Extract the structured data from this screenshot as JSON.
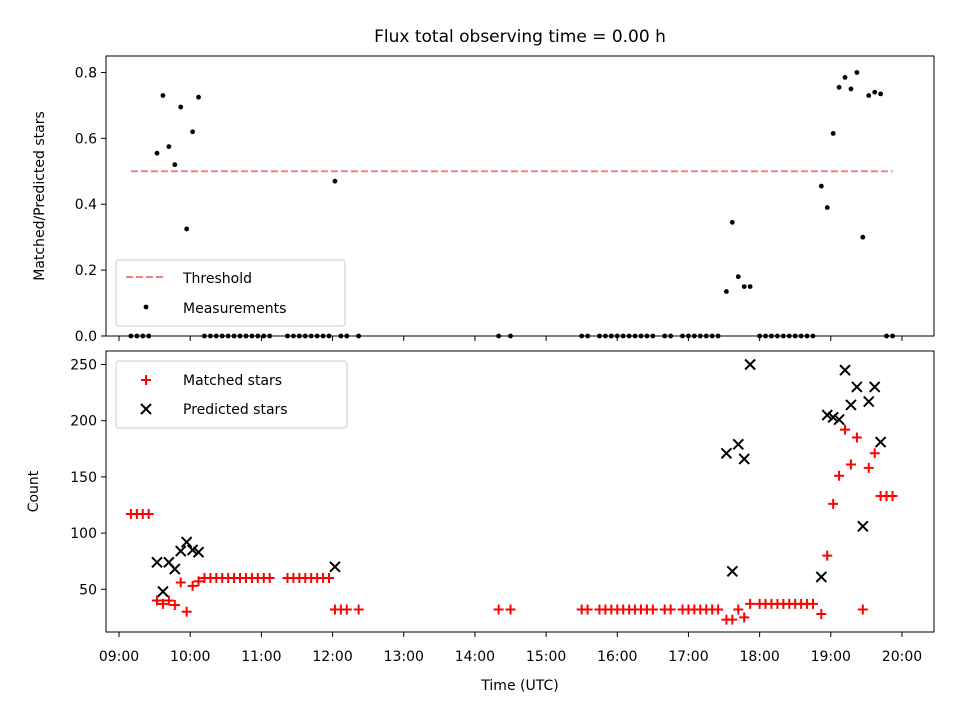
{
  "title": "Flux total observing time = 0.00 h",
  "chart_data": [
    {
      "type": "scatter",
      "ylabel": "Matched/Predicted stars",
      "xlim": [
        "08:49",
        "20:27"
      ],
      "ylim": [
        0,
        0.85
      ],
      "yticks": [
        "0.0",
        "0.2",
        "0.4",
        "0.6",
        "0.8"
      ],
      "legend": {
        "placement": "lower-left",
        "entries": [
          "Threshold",
          "Measurements"
        ]
      },
      "series": [
        {
          "name": "Threshold",
          "kind": "dashed-line",
          "color": "#f08080",
          "points": [
            [
              "09:10",
              0.5
            ],
            [
              "19:52",
              0.5
            ]
          ]
        },
        {
          "name": "Measurements",
          "kind": "dots",
          "color": "#000000",
          "points": [
            [
              "09:10",
              0
            ],
            [
              "09:15",
              0
            ],
            [
              "09:20",
              0
            ],
            [
              "09:25",
              0
            ],
            [
              "09:32",
              0.555
            ],
            [
              "09:37",
              0.73
            ],
            [
              "09:42",
              0.575
            ],
            [
              "09:47",
              0.52
            ],
            [
              "09:52",
              0.695
            ],
            [
              "09:57",
              0.325
            ],
            [
              "10:02",
              0.62
            ],
            [
              "10:07",
              0.725
            ],
            [
              "10:12",
              0
            ],
            [
              "10:17",
              0
            ],
            [
              "10:22",
              0
            ],
            [
              "10:27",
              0
            ],
            [
              "10:32",
              0
            ],
            [
              "10:37",
              0
            ],
            [
              "10:42",
              0
            ],
            [
              "10:47",
              0
            ],
            [
              "10:52",
              0
            ],
            [
              "10:57",
              0
            ],
            [
              "11:02",
              0
            ],
            [
              "11:07",
              0
            ],
            [
              "11:22",
              0
            ],
            [
              "11:27",
              0
            ],
            [
              "11:32",
              0
            ],
            [
              "11:37",
              0
            ],
            [
              "11:42",
              0
            ],
            [
              "11:47",
              0
            ],
            [
              "11:52",
              0
            ],
            [
              "11:57",
              0
            ],
            [
              "12:02",
              0.47
            ],
            [
              "12:07",
              0
            ],
            [
              "12:12",
              0
            ],
            [
              "12:22",
              0
            ],
            [
              "14:20",
              0
            ],
            [
              "14:30",
              0
            ],
            [
              "15:30",
              0
            ],
            [
              "15:35",
              0
            ],
            [
              "15:45",
              0
            ],
            [
              "15:50",
              0
            ],
            [
              "15:55",
              0
            ],
            [
              "16:00",
              0
            ],
            [
              "16:05",
              0
            ],
            [
              "16:10",
              0
            ],
            [
              "16:15",
              0
            ],
            [
              "16:20",
              0
            ],
            [
              "16:25",
              0
            ],
            [
              "16:30",
              0
            ],
            [
              "16:40",
              0
            ],
            [
              "16:45",
              0
            ],
            [
              "16:55",
              0
            ],
            [
              "17:00",
              0
            ],
            [
              "17:05",
              0
            ],
            [
              "17:10",
              0
            ],
            [
              "17:15",
              0
            ],
            [
              "17:20",
              0
            ],
            [
              "17:25",
              0
            ],
            [
              "17:32",
              0.135
            ],
            [
              "17:37",
              0.345
            ],
            [
              "17:42",
              0.18
            ],
            [
              "17:47",
              0.15
            ],
            [
              "17:52",
              0.15
            ],
            [
              "18:00",
              0
            ],
            [
              "18:05",
              0
            ],
            [
              "18:10",
              0
            ],
            [
              "18:15",
              0
            ],
            [
              "18:20",
              0
            ],
            [
              "18:25",
              0
            ],
            [
              "18:30",
              0
            ],
            [
              "18:35",
              0
            ],
            [
              "18:40",
              0
            ],
            [
              "18:45",
              0
            ],
            [
              "18:52",
              0.455
            ],
            [
              "18:57",
              0.39
            ],
            [
              "19:02",
              0.615
            ],
            [
              "19:07",
              0.755
            ],
            [
              "19:12",
              0.785
            ],
            [
              "19:17",
              0.75
            ],
            [
              "19:22",
              0.8
            ],
            [
              "19:27",
              0.3
            ],
            [
              "19:32",
              0.73
            ],
            [
              "19:37",
              0.74
            ],
            [
              "19:42",
              0.735
            ],
            [
              "19:47",
              0
            ],
            [
              "19:52",
              0
            ]
          ]
        }
      ]
    },
    {
      "type": "scatter",
      "xlabel": "Time (UTC)",
      "ylabel": "Count",
      "xlim": [
        "08:49",
        "20:27"
      ],
      "ylim": [
        12,
        262
      ],
      "yticks": [
        "50",
        "100",
        "150",
        "200",
        "250"
      ],
      "xticks": [
        "09:00",
        "10:00",
        "11:00",
        "12:00",
        "13:00",
        "14:00",
        "15:00",
        "16:00",
        "17:00",
        "18:00",
        "19:00",
        "20:00"
      ],
      "legend": {
        "placement": "upper-left",
        "entries": [
          "Matched stars",
          "Predicted stars"
        ]
      },
      "series": [
        {
          "name": "Matched stars",
          "marker": "plus",
          "color": "#ff0000",
          "points": [
            [
              "09:10",
              117
            ],
            [
              "09:15",
              117
            ],
            [
              "09:20",
              117
            ],
            [
              "09:25",
              117
            ],
            [
              "09:32",
              40
            ],
            [
              "09:37",
              37
            ],
            [
              "09:42",
              40
            ],
            [
              "09:47",
              36
            ],
            [
              "09:52",
              56
            ],
            [
              "09:57",
              30
            ],
            [
              "10:02",
              53
            ],
            [
              "10:07",
              57
            ],
            [
              "10:12",
              60
            ],
            [
              "10:17",
              60
            ],
            [
              "10:22",
              60
            ],
            [
              "10:27",
              60
            ],
            [
              "10:32",
              60
            ],
            [
              "10:37",
              60
            ],
            [
              "10:42",
              60
            ],
            [
              "10:47",
              60
            ],
            [
              "10:52",
              60
            ],
            [
              "10:57",
              60
            ],
            [
              "11:02",
              60
            ],
            [
              "11:07",
              60
            ],
            [
              "11:22",
              60
            ],
            [
              "11:27",
              60
            ],
            [
              "11:32",
              60
            ],
            [
              "11:37",
              60
            ],
            [
              "11:42",
              60
            ],
            [
              "11:47",
              60
            ],
            [
              "11:52",
              60
            ],
            [
              "11:57",
              60
            ],
            [
              "12:02",
              32
            ],
            [
              "12:07",
              32
            ],
            [
              "12:12",
              32
            ],
            [
              "12:22",
              32
            ],
            [
              "14:20",
              32
            ],
            [
              "14:30",
              32
            ],
            [
              "15:30",
              32
            ],
            [
              "15:35",
              32
            ],
            [
              "15:45",
              32
            ],
            [
              "15:50",
              32
            ],
            [
              "15:55",
              32
            ],
            [
              "16:00",
              32
            ],
            [
              "16:05",
              32
            ],
            [
              "16:10",
              32
            ],
            [
              "16:15",
              32
            ],
            [
              "16:20",
              32
            ],
            [
              "16:25",
              32
            ],
            [
              "16:30",
              32
            ],
            [
              "16:40",
              32
            ],
            [
              "16:45",
              32
            ],
            [
              "16:55",
              32
            ],
            [
              "17:00",
              32
            ],
            [
              "17:05",
              32
            ],
            [
              "17:10",
              32
            ],
            [
              "17:15",
              32
            ],
            [
              "17:20",
              32
            ],
            [
              "17:25",
              32
            ],
            [
              "17:32",
              23
            ],
            [
              "17:37",
              23
            ],
            [
              "17:42",
              32
            ],
            [
              "17:47",
              25
            ],
            [
              "17:52",
              37
            ],
            [
              "18:00",
              37
            ],
            [
              "18:05",
              37
            ],
            [
              "18:10",
              37
            ],
            [
              "18:15",
              37
            ],
            [
              "18:20",
              37
            ],
            [
              "18:25",
              37
            ],
            [
              "18:30",
              37
            ],
            [
              "18:35",
              37
            ],
            [
              "18:40",
              37
            ],
            [
              "18:45",
              37
            ],
            [
              "18:52",
              28
            ],
            [
              "18:57",
              80
            ],
            [
              "19:02",
              126
            ],
            [
              "19:07",
              151
            ],
            [
              "19:12",
              192
            ],
            [
              "19:17",
              161
            ],
            [
              "19:22",
              185
            ],
            [
              "19:27",
              32
            ],
            [
              "19:32",
              158
            ],
            [
              "19:37",
              171
            ],
            [
              "19:42",
              133
            ],
            [
              "19:47",
              133
            ],
            [
              "19:52",
              133
            ]
          ]
        },
        {
          "name": "Predicted stars",
          "marker": "x",
          "color": "#000000",
          "points": [
            [
              "09:32",
              74
            ],
            [
              "09:37",
              48
            ],
            [
              "09:42",
              74
            ],
            [
              "09:47",
              68
            ],
            [
              "09:52",
              84
            ],
            [
              "09:57",
              92
            ],
            [
              "10:02",
              85
            ],
            [
              "10:07",
              83
            ],
            [
              "12:02",
              70
            ],
            [
              "17:32",
              171
            ],
            [
              "17:37",
              66
            ],
            [
              "17:42",
              179
            ],
            [
              "17:47",
              166
            ],
            [
              "17:52",
              250
            ],
            [
              "18:52",
              61
            ],
            [
              "18:57",
              205
            ],
            [
              "19:02",
              203
            ],
            [
              "19:07",
              201
            ],
            [
              "19:12",
              245
            ],
            [
              "19:17",
              214
            ],
            [
              "19:22",
              230
            ],
            [
              "19:27",
              106
            ],
            [
              "19:32",
              217
            ],
            [
              "19:37",
              230
            ],
            [
              "19:42",
              181
            ]
          ]
        }
      ]
    }
  ]
}
